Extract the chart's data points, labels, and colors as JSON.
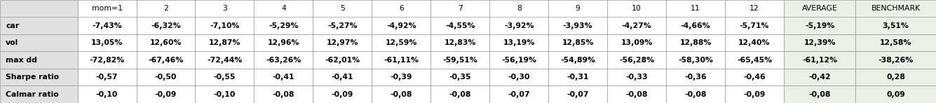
{
  "col_headers": [
    "",
    "mom=1",
    "2",
    "3",
    "4",
    "5",
    "6",
    "7",
    "8",
    "9",
    "10",
    "11",
    "12",
    "AVERAGE",
    "BENCHMARK"
  ],
  "rows": [
    [
      "car",
      "-7,43%",
      "-6,32%",
      "-7,10%",
      "-5,29%",
      "-5,27%",
      "-4,92%",
      "-4,55%",
      "-3,92%",
      "-3,93%",
      "-4,27%",
      "-4,66%",
      "-5,71%",
      "-5,19%",
      "3,51%"
    ],
    [
      "vol",
      "13,05%",
      "12,60%",
      "12,87%",
      "12,96%",
      "12,97%",
      "12,59%",
      "12,83%",
      "13,19%",
      "12,85%",
      "13,09%",
      "12,88%",
      "12,40%",
      "12,39%",
      "12,58%"
    ],
    [
      "max dd",
      "-72,82%",
      "-67,46%",
      "-72,44%",
      "-63,26%",
      "-62,01%",
      "-61,11%",
      "-59,51%",
      "-56,19%",
      "-54,89%",
      "-56,28%",
      "-58,30%",
      "-65,45%",
      "-61,12%",
      "-38,26%"
    ],
    [
      "Sharpe ratio",
      "-0,57",
      "-0,50",
      "-0,55",
      "-0,41",
      "-0,41",
      "-0,39",
      "-0,35",
      "-0,30",
      "-0,31",
      "-0,33",
      "-0,36",
      "-0,46",
      "-0,42",
      "0,28"
    ],
    [
      "Calmar ratio",
      "-0,10",
      "-0,09",
      "-0,10",
      "-0,08",
      "-0,09",
      "-0,08",
      "-0,08",
      "-0,07",
      "-0,07",
      "-0,08",
      "-0,08",
      "-0,09",
      "-0,08",
      "0,09"
    ]
  ],
  "label_col_bg": "#e0e0e0",
  "header_bg": "#ffffff",
  "data_bg": "#ffffff",
  "average_bg": "#eaf0e6",
  "benchmark_bg": "#eaf0e6",
  "grid_color": "#999999",
  "text_color": "#000000",
  "bold_rows": [
    "car",
    "vol",
    "max dd",
    "Sharpe ratio",
    "Calmar ratio"
  ],
  "italic_rows": [],
  "fig_width": 13.35,
  "fig_height": 1.47,
  "dpi": 100
}
